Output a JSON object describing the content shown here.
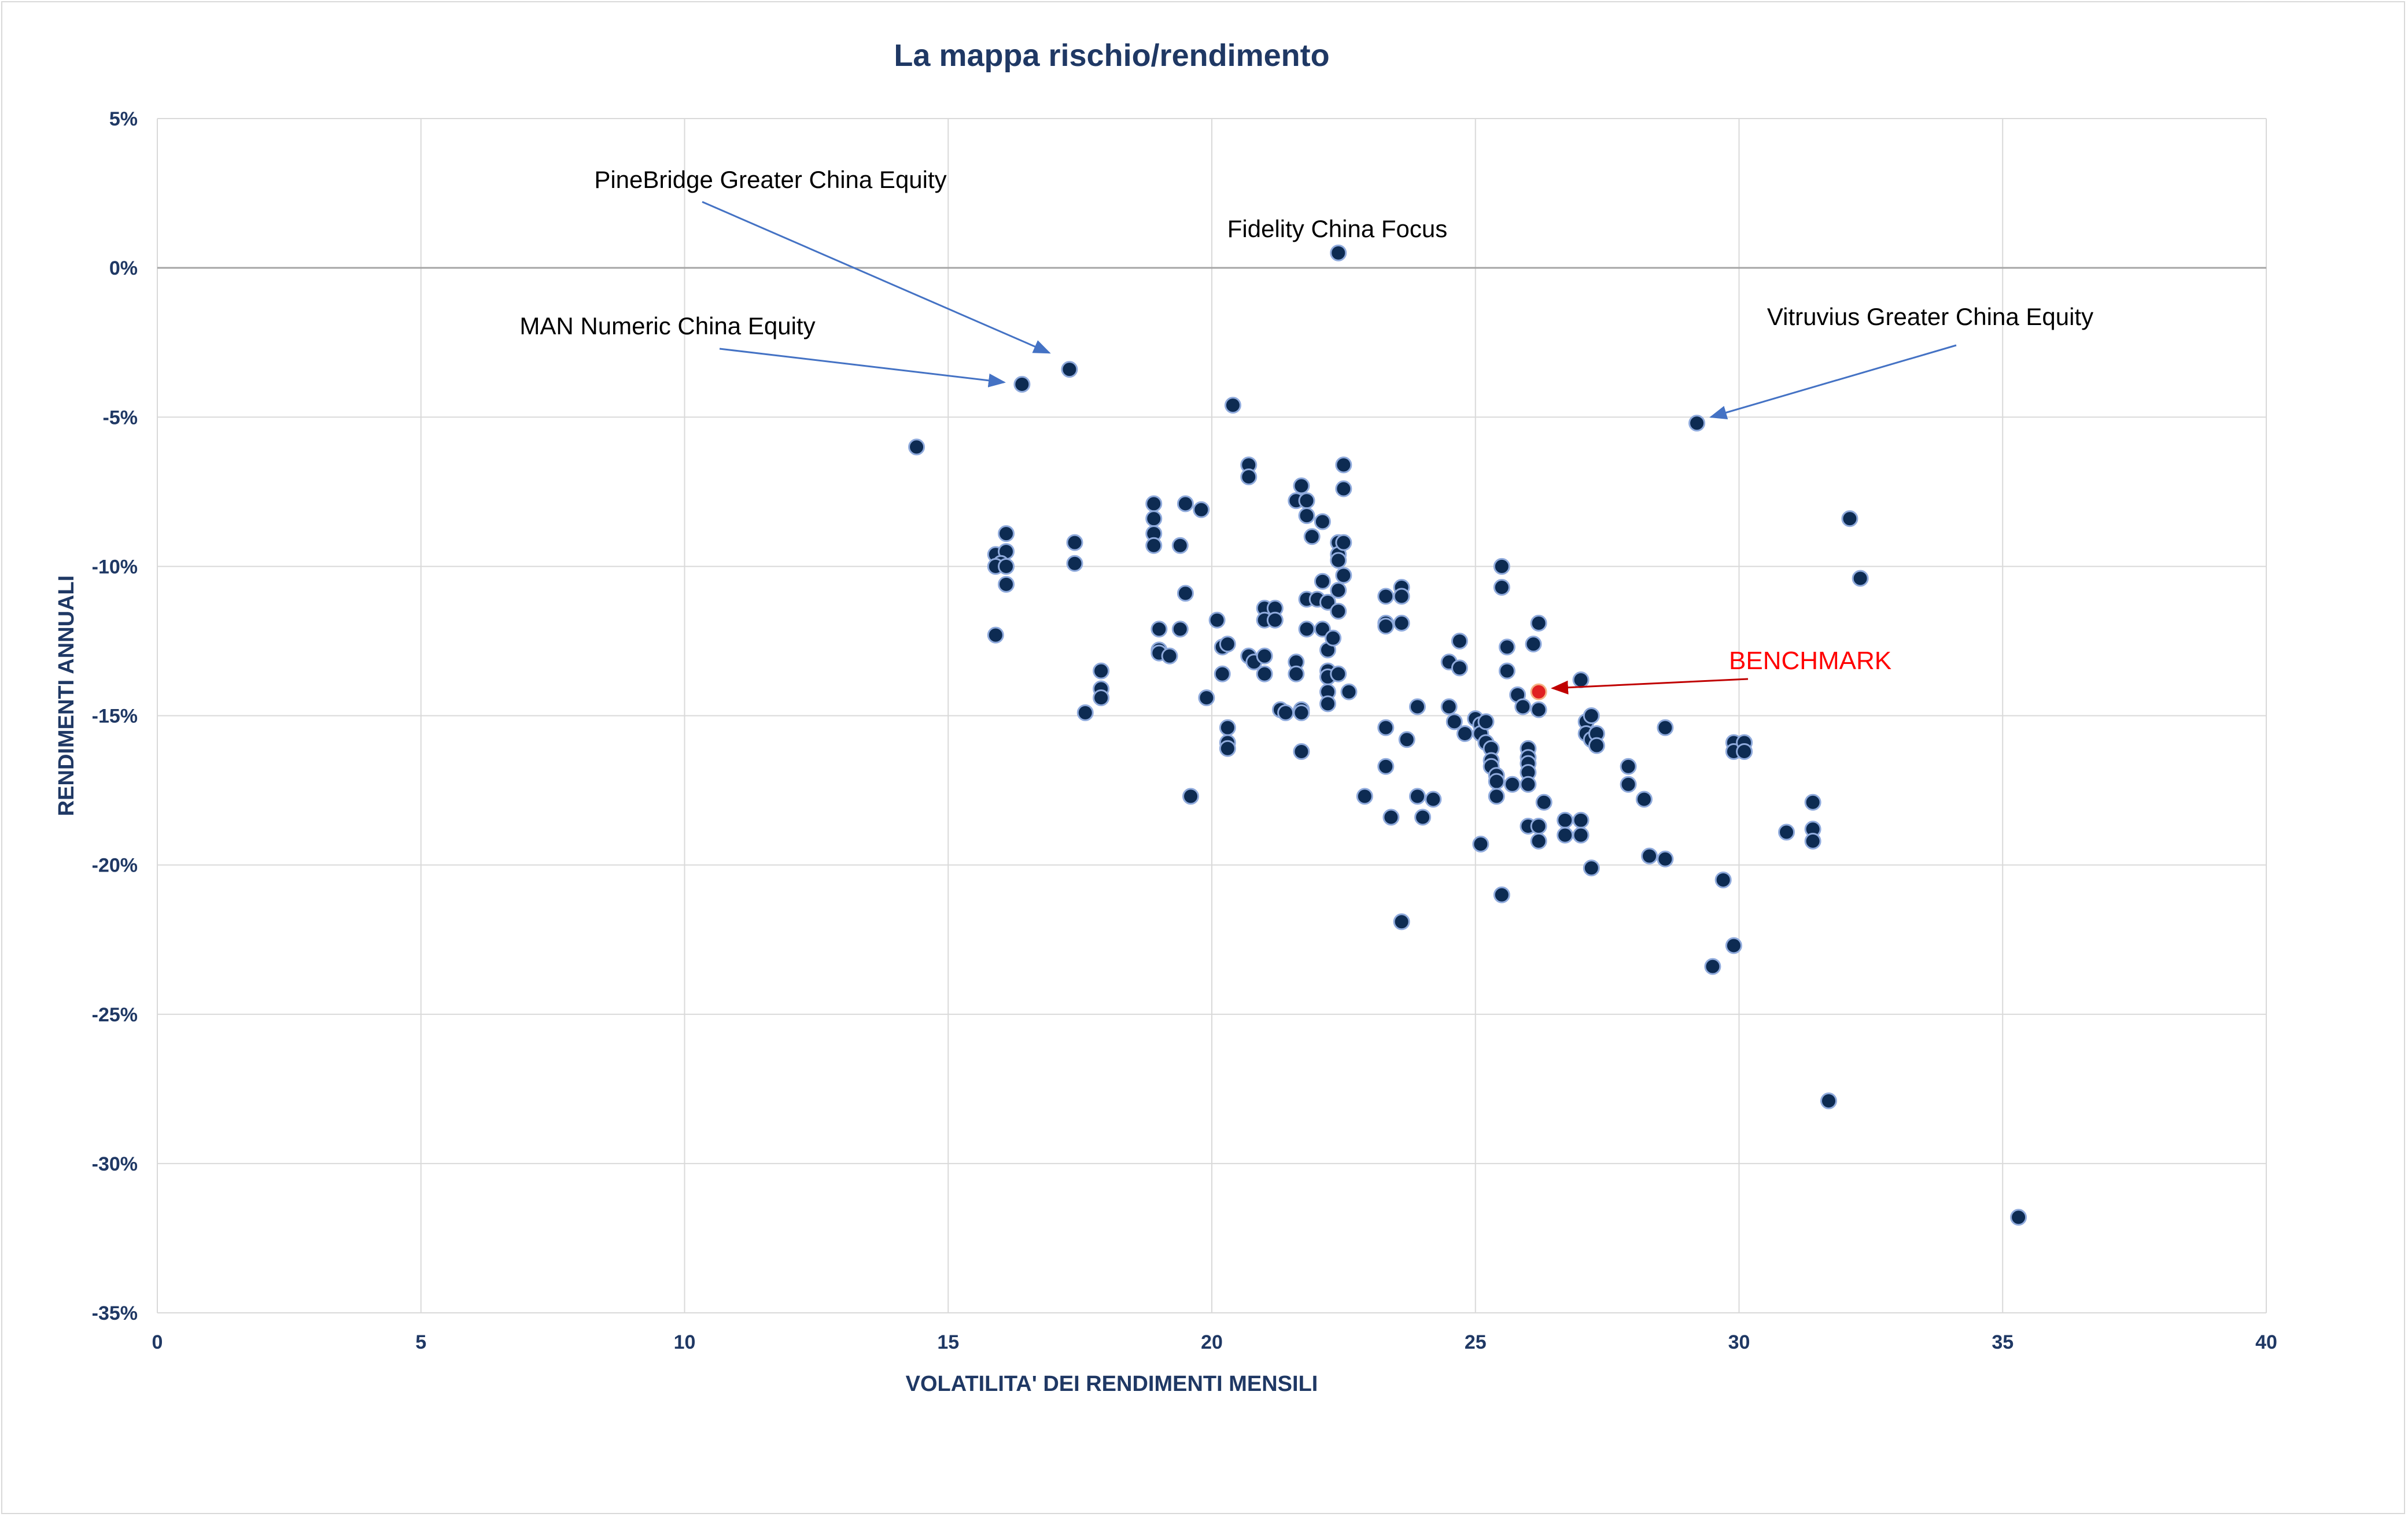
{
  "chart_data": {
    "type": "scatter",
    "title": "La mappa rischio/rendimento",
    "xlabel": "VOLATILITA' DEI RENDIMENTI MENSILI",
    "ylabel": "RENDIMENTI ANNUALI",
    "xlim": [
      0,
      40
    ],
    "ylim": [
      -35,
      5
    ],
    "x_ticks": [
      0,
      5,
      10,
      15,
      20,
      25,
      30,
      35,
      40
    ],
    "y_ticks": [
      5,
      0,
      -5,
      -10,
      -15,
      -20,
      -25,
      -30,
      -35
    ],
    "y_tick_labels": [
      "5%",
      "0%",
      "-5%",
      "-10%",
      "-15%",
      "-20%",
      "-25%",
      "-30%",
      "-35%"
    ],
    "grid": true,
    "legend": "none",
    "colors": {
      "points": "#0d2b52",
      "point_edge": "#8faadc",
      "benchmark": "#e02020",
      "arrows": "#4472c4",
      "grid": "#d9d9d9"
    },
    "annotations": [
      {
        "text": "PineBridge Greater China Equity",
        "x": 17.3,
        "y": -3.4
      },
      {
        "text": "Fidelity China Focus",
        "x": 22.4,
        "y": 0.5
      },
      {
        "text": "MAN Numeric China Equity",
        "x": 16.4,
        "y": -3.9
      },
      {
        "text": "Vitruvius Greater China Equity",
        "x": 29.2,
        "y": -5.2
      },
      {
        "text": "BENCHMARK",
        "x": 26.2,
        "y": -14.2
      }
    ],
    "benchmark": {
      "name": "BENCHMARK",
      "x": 26.2,
      "y": -14.2
    },
    "points": [
      [
        14.4,
        -6.0
      ],
      [
        16.4,
        -3.9
      ],
      [
        17.3,
        -3.4
      ],
      [
        20.4,
        -4.6
      ],
      [
        22.4,
        0.5
      ],
      [
        29.2,
        -5.2
      ],
      [
        32.1,
        -8.4
      ],
      [
        32.3,
        -10.4
      ],
      [
        16.1,
        -8.9
      ],
      [
        15.9,
        -9.6
      ],
      [
        16.1,
        -9.5
      ],
      [
        16.0,
        -9.9
      ],
      [
        15.9,
        -10.0
      ],
      [
        16.1,
        -10.0
      ],
      [
        16.1,
        -10.6
      ],
      [
        15.9,
        -12.3
      ],
      [
        17.4,
        -9.2
      ],
      [
        17.4,
        -9.9
      ],
      [
        17.6,
        -14.9
      ],
      [
        17.9,
        -13.5
      ],
      [
        17.9,
        -14.1
      ],
      [
        17.9,
        -14.4
      ],
      [
        18.9,
        -7.9
      ],
      [
        18.9,
        -8.4
      ],
      [
        18.9,
        -8.9
      ],
      [
        18.9,
        -9.3
      ],
      [
        19.0,
        -12.1
      ],
      [
        19.0,
        -12.8
      ],
      [
        19.0,
        -12.9
      ],
      [
        19.2,
        -13.0
      ],
      [
        19.4,
        -9.3
      ],
      [
        19.4,
        -12.1
      ],
      [
        19.5,
        -7.9
      ],
      [
        19.5,
        -10.9
      ],
      [
        19.6,
        -17.7
      ],
      [
        19.8,
        -8.1
      ],
      [
        19.9,
        -14.4
      ],
      [
        20.1,
        -11.8
      ],
      [
        20.2,
        -12.7
      ],
      [
        20.2,
        -13.6
      ],
      [
        20.3,
        -12.6
      ],
      [
        20.3,
        -15.4
      ],
      [
        20.3,
        -15.9
      ],
      [
        20.3,
        -16.1
      ],
      [
        20.7,
        -6.6
      ],
      [
        20.7,
        -7.0
      ],
      [
        20.7,
        -13.0
      ],
      [
        20.8,
        -13.2
      ],
      [
        21.0,
        -11.4
      ],
      [
        21.0,
        -11.8
      ],
      [
        21.0,
        -13.0
      ],
      [
        21.0,
        -13.6
      ],
      [
        21.2,
        -11.4
      ],
      [
        21.2,
        -11.8
      ],
      [
        21.3,
        -14.8
      ],
      [
        21.4,
        -14.9
      ],
      [
        21.6,
        -7.8
      ],
      [
        21.6,
        -13.2
      ],
      [
        21.6,
        -13.6
      ],
      [
        21.7,
        -7.3
      ],
      [
        21.8,
        -7.8
      ],
      [
        21.8,
        -8.3
      ],
      [
        21.8,
        -11.1
      ],
      [
        21.8,
        -12.1
      ],
      [
        21.7,
        -14.8
      ],
      [
        21.7,
        -14.9
      ],
      [
        21.7,
        -16.2
      ],
      [
        21.9,
        -9.0
      ],
      [
        22.0,
        -11.1
      ],
      [
        22.1,
        -8.5
      ],
      [
        22.1,
        -10.5
      ],
      [
        22.1,
        -12.1
      ],
      [
        22.2,
        -11.2
      ],
      [
        22.2,
        -12.8
      ],
      [
        22.2,
        -13.5
      ],
      [
        22.2,
        -13.7
      ],
      [
        22.2,
        -14.2
      ],
      [
        22.2,
        -14.6
      ],
      [
        22.3,
        -12.4
      ],
      [
        22.4,
        -9.2
      ],
      [
        22.4,
        -9.6
      ],
      [
        22.4,
        -9.8
      ],
      [
        22.4,
        -10.8
      ],
      [
        22.4,
        -11.5
      ],
      [
        22.4,
        -13.6
      ],
      [
        22.5,
        -6.6
      ],
      [
        22.5,
        -7.4
      ],
      [
        22.5,
        -9.2
      ],
      [
        22.5,
        -10.3
      ],
      [
        22.6,
        -14.2
      ],
      [
        22.9,
        -17.7
      ],
      [
        23.3,
        -11.0
      ],
      [
        23.3,
        -11.9
      ],
      [
        23.3,
        -12.0
      ],
      [
        23.3,
        -15.4
      ],
      [
        23.3,
        -16.7
      ],
      [
        23.4,
        -18.4
      ],
      [
        23.6,
        -10.7
      ],
      [
        23.6,
        -11.0
      ],
      [
        23.6,
        -11.9
      ],
      [
        23.6,
        -21.9
      ],
      [
        23.7,
        -15.8
      ],
      [
        23.9,
        -14.7
      ],
      [
        23.9,
        -17.7
      ],
      [
        24.0,
        -18.4
      ],
      [
        24.2,
        -17.8
      ],
      [
        24.5,
        -13.2
      ],
      [
        24.5,
        -14.7
      ],
      [
        24.6,
        -15.2
      ],
      [
        24.7,
        -12.5
      ],
      [
        24.7,
        -13.4
      ],
      [
        24.8,
        -15.6
      ],
      [
        25.0,
        -15.1
      ],
      [
        25.1,
        -15.3
      ],
      [
        25.1,
        -15.6
      ],
      [
        25.1,
        -19.3
      ],
      [
        25.2,
        -15.2
      ],
      [
        25.2,
        -15.9
      ],
      [
        25.3,
        -16.1
      ],
      [
        25.3,
        -16.5
      ],
      [
        25.3,
        -16.7
      ],
      [
        25.4,
        -17.0
      ],
      [
        25.4,
        -17.2
      ],
      [
        25.4,
        -17.7
      ],
      [
        25.5,
        -10.0
      ],
      [
        25.5,
        -10.7
      ],
      [
        25.5,
        -21.0
      ],
      [
        25.6,
        -12.7
      ],
      [
        25.6,
        -13.5
      ],
      [
        25.7,
        -17.3
      ],
      [
        25.8,
        -14.3
      ],
      [
        25.9,
        -14.7
      ],
      [
        26.0,
        -16.1
      ],
      [
        26.0,
        -16.4
      ],
      [
        26.0,
        -16.6
      ],
      [
        26.0,
        -16.9
      ],
      [
        26.0,
        -17.3
      ],
      [
        26.0,
        -18.7
      ],
      [
        26.1,
        -12.6
      ],
      [
        26.2,
        -11.9
      ],
      [
        26.2,
        -14.8
      ],
      [
        26.2,
        -18.7
      ],
      [
        26.2,
        -19.2
      ],
      [
        26.3,
        -17.9
      ],
      [
        26.7,
        -18.5
      ],
      [
        26.7,
        -19.0
      ],
      [
        27.0,
        -13.8
      ],
      [
        27.0,
        -18.5
      ],
      [
        27.0,
        -19.0
      ],
      [
        27.1,
        -15.2
      ],
      [
        27.1,
        -15.6
      ],
      [
        27.2,
        -15.0
      ],
      [
        27.2,
        -15.8
      ],
      [
        27.2,
        -20.1
      ],
      [
        27.3,
        -15.6
      ],
      [
        27.3,
        -16.0
      ],
      [
        27.9,
        -16.7
      ],
      [
        27.9,
        -17.3
      ],
      [
        28.2,
        -17.8
      ],
      [
        28.3,
        -19.7
      ],
      [
        28.6,
        -15.4
      ],
      [
        28.6,
        -19.8
      ],
      [
        29.5,
        -23.4
      ],
      [
        29.7,
        -20.5
      ],
      [
        29.9,
        -15.9
      ],
      [
        29.9,
        -16.2
      ],
      [
        29.9,
        -22.7
      ],
      [
        30.1,
        -15.9
      ],
      [
        30.1,
        -16.2
      ],
      [
        30.9,
        -18.9
      ],
      [
        31.4,
        -17.9
      ],
      [
        31.4,
        -18.8
      ],
      [
        31.4,
        -19.2
      ],
      [
        31.7,
        -27.9
      ],
      [
        35.3,
        -31.8
      ]
    ]
  }
}
